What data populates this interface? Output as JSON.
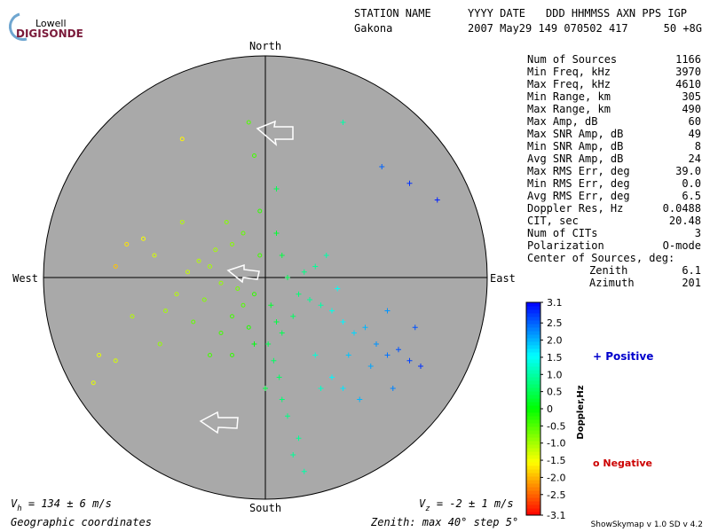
{
  "logo": {
    "top": "Lowell",
    "bottom": "DIGISONDE"
  },
  "header": {
    "row1": [
      "STATION NAME",
      "YYYY DATE",
      "DDD HHMMSS AXN PPS IGP"
    ],
    "row2": [
      "Gakona",
      "2007 May29 149 070502 417",
      "50 +8G"
    ]
  },
  "stats": [
    [
      "Num of Sources",
      "1166"
    ],
    [
      "Min Freq, kHz",
      "3970"
    ],
    [
      "Max Freq, kHz",
      "4610"
    ],
    [
      "Min Range, km",
      "305"
    ],
    [
      "Max Range, km",
      "490"
    ],
    [
      "Max Amp, dB",
      "60"
    ],
    [
      "Max SNR Amp, dB",
      "49"
    ],
    [
      "Min SNR Amp, dB",
      "8"
    ],
    [
      "Avg SNR Amp, dB",
      "24"
    ],
    [
      "Max RMS Err, deg",
      "39.0"
    ],
    [
      "Min RMS Err, deg",
      "0.0"
    ],
    [
      "Avg RMS Err, deg",
      "6.5"
    ],
    [
      "Doppler Res, Hz",
      "0.0488"
    ],
    [
      "CIT, sec",
      "20.48"
    ],
    [
      "Num of CITs",
      "3"
    ],
    [
      "Polarization",
      "O-mode"
    ]
  ],
  "center": {
    "title": "Center of Sources, deg:",
    "rows": [
      [
        "Zenith",
        "6.1"
      ],
      [
        "Azimuth",
        "201"
      ]
    ]
  },
  "footer": {
    "vh": {
      "symbol": "V",
      "sub": "h",
      "text": " = 134 ± 6 m/s"
    },
    "vz": {
      "symbol": "V",
      "sub": "z",
      "text": " = -2 ± 1 m/s"
    },
    "coords": "Geographic coordinates",
    "zenith": "Zenith: max 40°  step 5°",
    "version": "ShowSkymap v 1.0   SD v 4.2"
  },
  "chart_data": {
    "type": "scatter",
    "directions": {
      "north": "North",
      "south": "South",
      "east": "East",
      "west": "West"
    },
    "xlim": [
      -40,
      40
    ],
    "ylim": [
      -40,
      40
    ],
    "rticks": [
      5,
      10,
      15,
      20,
      25,
      30,
      35,
      40
    ],
    "colorbar": {
      "label": "Doppler,Hz",
      "lim": [
        -3.1,
        3.1
      ],
      "ticks": [
        3.1,
        2.5,
        {
          "value": 2.0,
          "label": "2.0"
        },
        1.5,
        {
          "value": 1.0,
          "label": "1.0"
        },
        0.5,
        0,
        -0.5,
        {
          "value": -1.0,
          "label": "-1.0"
        },
        -1.5,
        {
          "value": -2.0,
          "label": "-2.0"
        },
        -2.5,
        -3.1
      ]
    },
    "series": [
      {
        "name": "Positive",
        "color": "#0000cc",
        "x": [
          1,
          2,
          0.5,
          1.5,
          2.5,
          3,
          4,
          6,
          3,
          5,
          6,
          4,
          7,
          8,
          10,
          12,
          14,
          16,
          18,
          20,
          22,
          24,
          26,
          28,
          19,
          15,
          12,
          10,
          9,
          5,
          7,
          9,
          11,
          3,
          2,
          13,
          22,
          27,
          21,
          26,
          31,
          14,
          14,
          17,
          23,
          2,
          -2,
          0
        ],
        "y": [
          -5,
          -8,
          -12,
          -15,
          -18,
          -22,
          -25,
          -29,
          -10,
          -7,
          -3,
          0,
          1,
          -4,
          -5,
          -6,
          -8,
          -10,
          -9,
          -12,
          -14,
          -13,
          -15,
          -16,
          -16,
          -14,
          -18,
          -20,
          -14,
          -32,
          -35,
          2,
          4,
          4,
          8,
          -2,
          -6,
          -9,
          20,
          17,
          14,
          28,
          -20,
          -22,
          -20,
          16,
          -12,
          -20
        ],
        "doppler": [
          0.3,
          0.4,
          0.5,
          0.6,
          0.6,
          0.7,
          0.8,
          0.9,
          0.5,
          0.6,
          0.7,
          0.5,
          0.8,
          0.9,
          1.0,
          1.4,
          1.6,
          1.8,
          2.0,
          2.2,
          2.4,
          2.6,
          2.7,
          2.8,
          2.1,
          1.9,
          1.6,
          1.2,
          1.3,
          0.9,
          1.0,
          0.9,
          1.0,
          0.4,
          0.3,
          1.5,
          2.2,
          2.6,
          2.5,
          2.8,
          2.9,
          1.0,
          1.7,
          2.0,
          2.3,
          0.5,
          0.1,
          0.4
        ]
      },
      {
        "name": "Negative",
        "color": "#cc0000",
        "x": [
          -2,
          -4,
          -6,
          -3,
          -5,
          -8,
          -10,
          -12,
          -14,
          -9,
          -6,
          -4,
          -11,
          -16,
          -18,
          -13,
          -8,
          -10,
          -20,
          -22,
          -25,
          -27,
          -24,
          -30,
          -31,
          -27,
          -15,
          -7,
          -1,
          -2,
          -15,
          -3,
          -19,
          -6,
          -1
        ],
        "y": [
          -3,
          -5,
          -7,
          -9,
          -2,
          -1,
          2,
          3,
          1,
          5,
          6,
          8,
          -4,
          -3,
          -6,
          -8,
          -10,
          -14,
          4,
          7,
          6,
          2,
          -7,
          -14,
          -19,
          -15,
          10,
          10,
          4,
          22,
          25,
          28,
          -12,
          -14,
          12
        ],
        "doppler": [
          -0.3,
          -0.5,
          -0.4,
          -0.2,
          -0.7,
          -0.9,
          -1.0,
          -1.1,
          -1.2,
          -1.0,
          -0.8,
          -0.6,
          -0.8,
          -1.1,
          -1.0,
          -0.6,
          -0.4,
          -0.4,
          -1.3,
          -1.5,
          -1.7,
          -1.9,
          -1.1,
          -1.4,
          -1.4,
          -1.3,
          -1.1,
          -0.8,
          -0.4,
          -0.4,
          -1.6,
          -0.5,
          -0.9,
          -0.3,
          -0.3
        ]
      }
    ]
  }
}
